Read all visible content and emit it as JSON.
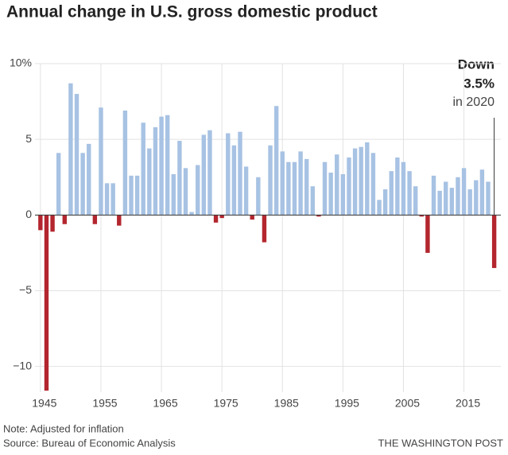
{
  "chart_data": {
    "type": "bar",
    "title": "Annual change in U.S. gross domestic product",
    "x": [
      1945,
      1946,
      1947,
      1948,
      1949,
      1950,
      1951,
      1952,
      1953,
      1954,
      1955,
      1956,
      1957,
      1958,
      1959,
      1960,
      1961,
      1962,
      1963,
      1964,
      1965,
      1966,
      1967,
      1968,
      1969,
      1970,
      1971,
      1972,
      1973,
      1974,
      1975,
      1976,
      1977,
      1978,
      1979,
      1980,
      1981,
      1982,
      1983,
      1984,
      1985,
      1986,
      1987,
      1988,
      1989,
      1990,
      1991,
      1992,
      1993,
      1994,
      1995,
      1996,
      1997,
      1998,
      1999,
      2000,
      2001,
      2002,
      2003,
      2004,
      2005,
      2006,
      2007,
      2008,
      2009,
      2010,
      2011,
      2012,
      2013,
      2014,
      2015,
      2016,
      2017,
      2018,
      2019,
      2020
    ],
    "values": [
      -1.0,
      -11.6,
      -1.1,
      4.1,
      -0.6,
      8.7,
      8.0,
      4.1,
      4.7,
      -0.6,
      7.1,
      2.1,
      2.1,
      -0.7,
      6.9,
      2.6,
      2.6,
      6.1,
      4.4,
      5.8,
      6.5,
      6.6,
      2.7,
      4.9,
      3.1,
      0.2,
      3.3,
      5.3,
      5.6,
      -0.5,
      -0.2,
      5.4,
      4.6,
      5.5,
      3.2,
      -0.3,
      2.5,
      -1.8,
      4.6,
      7.2,
      4.2,
      3.5,
      3.5,
      4.2,
      3.7,
      1.9,
      -0.1,
      3.5,
      2.8,
      4.0,
      2.7,
      3.8,
      4.4,
      4.5,
      4.8,
      4.1,
      1.0,
      1.7,
      2.9,
      3.8,
      3.5,
      2.9,
      1.9,
      -0.1,
      -2.5,
      2.6,
      1.6,
      2.2,
      1.8,
      2.5,
      3.1,
      1.7,
      2.3,
      3.0,
      2.2,
      -3.5
    ],
    "positive_color": "#a7c2e3",
    "negative_color": "#b3262e",
    "xlim": [
      1944.1,
      2021.1
    ],
    "xticks": [
      1945,
      1955,
      1965,
      1975,
      1985,
      1995,
      2005,
      2015
    ],
    "ylim": [
      -11.7,
      10
    ],
    "yticks": [
      {
        "value": 10,
        "label": "10%"
      },
      5,
      0,
      {
        "value": -5,
        "label": "−5"
      },
      {
        "value": -10,
        "label": "−10"
      }
    ],
    "grid": true,
    "annotation": {
      "lines": [
        "Down",
        "3.5%",
        "in 2020"
      ]
    },
    "note": "Note: Adjusted for inflation",
    "source": "Source: Bureau of Economic Analysis",
    "credit": "THE WASHINGTON POST"
  }
}
